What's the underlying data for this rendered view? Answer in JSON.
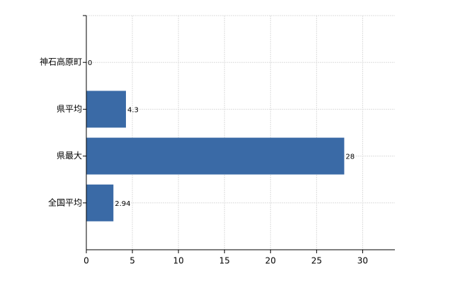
{
  "chart_data": {
    "type": "bar",
    "orientation": "horizontal",
    "categories": [
      "神石高原町",
      "県平均",
      "県最大",
      "全国平均"
    ],
    "values": [
      0,
      4.3,
      28,
      2.94
    ],
    "color": "#3a6aa6",
    "xlim": [
      0,
      33.5
    ],
    "xticks": [
      0,
      5,
      10,
      15,
      20,
      25,
      30
    ],
    "grid": true
  }
}
